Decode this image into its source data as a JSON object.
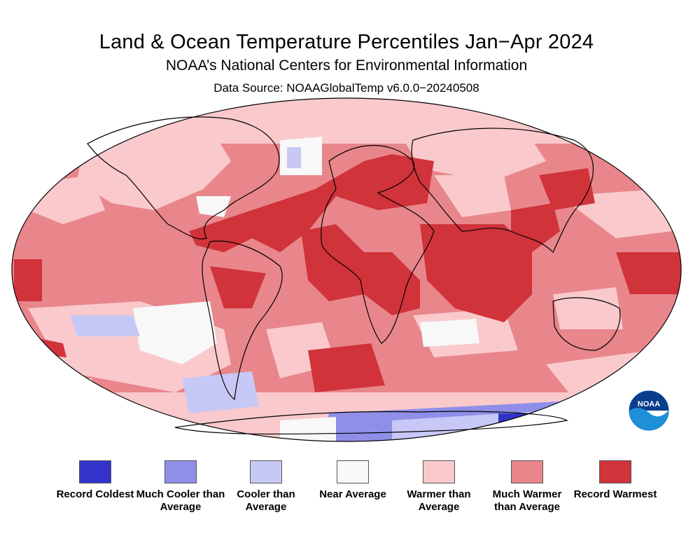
{
  "header": {
    "title": "Land & Ocean Temperature Percentiles Jan−Apr 2024",
    "subtitle": "NOAA’s National Centers for Environmental Information",
    "source": "Data Source: NOAAGlobalTemp v6.0.0−20240508"
  },
  "legend": [
    {
      "label": "Record Coldest",
      "color": "#3333cc"
    },
    {
      "label": "Much Cooler than Average",
      "color": "#8f8fe8"
    },
    {
      "label": "Cooler than Average",
      "color": "#c8c8f6"
    },
    {
      "label": "Near Average",
      "color": "#f8f8f8"
    },
    {
      "label": "Warmer than Average",
      "color": "#f9c9cc"
    },
    {
      "label": "Much Warmer than Average",
      "color": "#e8868b"
    },
    {
      "label": "Record Warmest",
      "color": "#d0333a"
    }
  ],
  "logo": {
    "text": "NOAA",
    "color": "#0a63b4"
  }
}
